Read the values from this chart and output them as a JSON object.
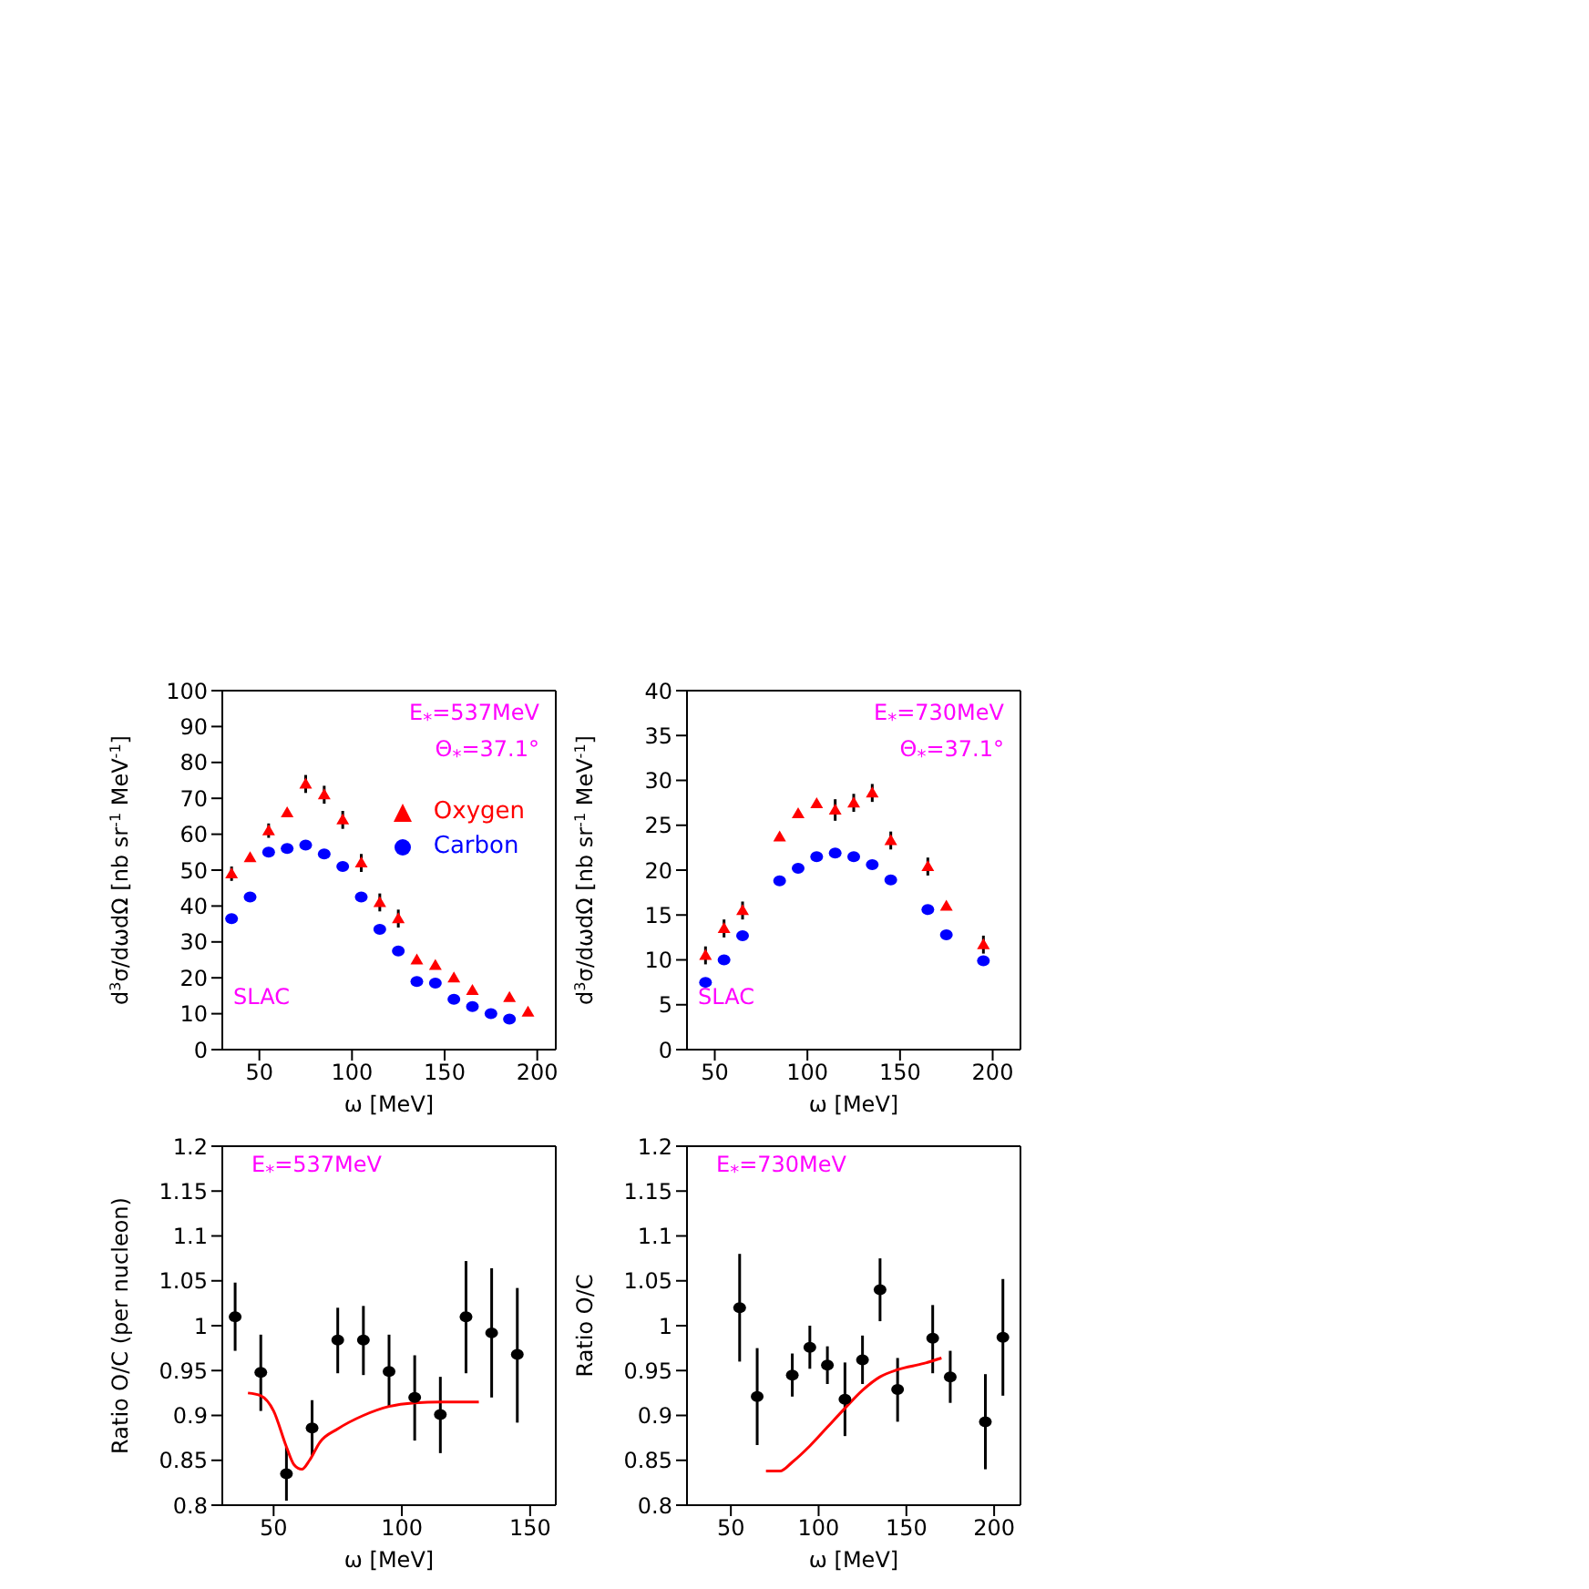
{
  "chart_data": [
    {
      "type": "scatter",
      "xlabel": "ω [MeV]",
      "ylabel": "d$^{3}$σ/dωdΩ [nb sr$^{-1}$ MeV$^{-1}$]",
      "xlim": [
        30,
        210
      ],
      "xticks": [
        50,
        100,
        150,
        200
      ],
      "ylim": [
        0,
        100
      ],
      "yticks": [
        0,
        10,
        20,
        30,
        40,
        50,
        60,
        70,
        80,
        90,
        100
      ],
      "grid": false,
      "legend": "top right",
      "annotations": [
        "E$_{*}$=537MeV",
        "Θ$_{*}$=37.1°",
        "SLAC"
      ],
      "series": [
        {
          "name": "Oxygen",
          "color": "#ff0000",
          "marker": "triangle",
          "x": [
            35,
            45,
            55,
            65,
            75,
            85,
            95,
            105,
            115,
            125,
            135,
            145,
            155,
            165,
            185,
            195
          ],
          "values": [
            49,
            53.5,
            61,
            66,
            74,
            71,
            64,
            52,
            41,
            36.5,
            25,
            23.5,
            20,
            16.5,
            14.5,
            10.5
          ],
          "errors": [
            2,
            null,
            2,
            null,
            2.5,
            2.5,
            2.5,
            2.5,
            2.5,
            2.5,
            null,
            null,
            null,
            null,
            null,
            null
          ]
        },
        {
          "name": "Carbon",
          "color": "#0000ff",
          "marker": "circle",
          "x": [
            35,
            45,
            55,
            65,
            75,
            85,
            95,
            105,
            115,
            125,
            135,
            145,
            155,
            165,
            175,
            185
          ],
          "values": [
            36.5,
            42.5,
            55,
            56,
            57,
            54.5,
            51,
            42.5,
            33.5,
            27.5,
            19,
            18.5,
            14,
            12,
            10,
            8.5
          ]
        }
      ]
    },
    {
      "type": "scatter",
      "xlabel": "ω [MeV]",
      "ylabel": "d$^{3}$σ/dωdΩ [nb sr$^{-1}$ MeV$^{-1}$]",
      "xlim": [
        35,
        215
      ],
      "xticks": [
        50,
        100,
        150,
        200
      ],
      "ylim": [
        0,
        40
      ],
      "yticks": [
        0,
        5,
        10,
        15,
        20,
        25,
        30,
        35,
        40
      ],
      "grid": false,
      "annotations": [
        "E$_{*}$=730MeV",
        "Θ$_{*}$=37.1°",
        "SLAC"
      ],
      "series": [
        {
          "color": "#ff0000",
          "marker": "triangle",
          "x": [
            45,
            55,
            65,
            85,
            95,
            105,
            115,
            125,
            135,
            145,
            165,
            175,
            195
          ],
          "values": [
            10.5,
            13.5,
            15.5,
            23.7,
            26.3,
            27.4,
            26.7,
            27.5,
            28.6,
            23.3,
            20.4,
            16,
            11.7
          ],
          "errors": [
            1,
            1,
            1,
            null,
            null,
            null,
            1.2,
            1,
            1,
            1,
            1,
            null,
            1
          ]
        },
        {
          "color": "#0000ff",
          "marker": "circle",
          "x": [
            45,
            55,
            65,
            85,
            95,
            105,
            115,
            125,
            135,
            145,
            165,
            175,
            195
          ],
          "values": [
            7.5,
            10,
            12.7,
            18.8,
            20.2,
            21.5,
            21.9,
            21.5,
            20.6,
            18.9,
            15.6,
            12.8,
            9.9
          ]
        }
      ]
    },
    {
      "type": "scatter",
      "xlabel": "ω [MeV]",
      "ylabel": "Ratio O/C (per nucleon)",
      "xlim": [
        30,
        160
      ],
      "xticks": [
        50,
        100,
        150
      ],
      "ylim": [
        0.8,
        1.2
      ],
      "yticks": [
        0.8,
        0.85,
        0.9,
        0.95,
        1,
        1.05,
        1.1,
        1.15,
        1.2
      ],
      "grid": false,
      "annotations": [
        "E$_{*}$=537MeV"
      ],
      "series": [
        {
          "color": "#000000",
          "marker": "circle",
          "x": [
            35,
            45,
            55,
            65,
            75,
            85,
            95,
            105,
            115,
            125,
            135,
            145
          ],
          "values": [
            1.01,
            0.948,
            0.835,
            0.886,
            0.984,
            0.984,
            0.949,
            0.92,
            0.901,
            1.01,
            0.992,
            0.968
          ],
          "errors": [
            [
              0.972,
              1.048
            ],
            [
              0.905,
              0.99
            ],
            [
              0.805,
              0.865
            ],
            [
              0.855,
              0.917
            ],
            [
              0.947,
              1.02
            ],
            [
              0.945,
              1.022
            ],
            [
              0.91,
              0.99
            ],
            [
              0.872,
              0.967
            ],
            [
              0.858,
              0.943
            ],
            [
              0.947,
              1.072
            ],
            [
              0.92,
              1.064
            ],
            [
              0.892,
              1.042
            ]
          ]
        },
        {
          "type": "line",
          "color": "#ff0000",
          "marker": "none",
          "line_style": "solid",
          "x": [
            40,
            45,
            50,
            55,
            58,
            61,
            64,
            68,
            75,
            85,
            95,
            105,
            115,
            130
          ],
          "values": [
            0.925,
            0.922,
            0.905,
            0.865,
            0.845,
            0.84,
            0.85,
            0.87,
            0.885,
            0.9,
            0.91,
            0.914,
            0.915,
            0.915
          ]
        }
      ]
    },
    {
      "type": "scatter",
      "xlabel": "ω [MeV]",
      "ylabel": "Ratio O/C",
      "xlim": [
        25,
        215
      ],
      "xticks": [
        50,
        100,
        150,
        200
      ],
      "ylim": [
        0.8,
        1.2
      ],
      "yticks": [
        0.8,
        0.85,
        0.9,
        0.95,
        1,
        1.05,
        1.1,
        1.15,
        1.2
      ],
      "grid": false,
      "annotations": [
        "E$_{*}$=730MeV"
      ],
      "series": [
        {
          "color": "#000000",
          "marker": "circle",
          "x": [
            55,
            65,
            85,
            95,
            105,
            115,
            125,
            135,
            145,
            165,
            175,
            195,
            205
          ],
          "values": [
            1.02,
            0.921,
            0.945,
            0.976,
            0.956,
            0.918,
            0.962,
            1.04,
            0.929,
            0.986,
            0.943,
            0.893,
            0.987
          ],
          "errors": [
            [
              0.96,
              1.08
            ],
            [
              0.867,
              0.975
            ],
            [
              0.921,
              0.969
            ],
            [
              0.952,
              1.0
            ],
            [
              0.935,
              0.977
            ],
            [
              0.877,
              0.959
            ],
            [
              0.935,
              0.989
            ],
            [
              1.005,
              1.075
            ],
            [
              0.893,
              0.964
            ],
            [
              0.947,
              1.023
            ],
            [
              0.914,
              0.972
            ],
            [
              0.84,
              0.946
            ],
            [
              0.922,
              1.052
            ]
          ]
        },
        {
          "type": "line",
          "color": "#ff0000",
          "marker": "none",
          "line_style": "solid",
          "x": [
            70,
            78,
            85,
            95,
            105,
            115,
            125,
            135,
            145,
            160,
            170
          ],
          "values": [
            0.838,
            0.838,
            0.848,
            0.866,
            0.887,
            0.908,
            0.928,
            0.943,
            0.951,
            0.958,
            0.964
          ]
        }
      ]
    }
  ]
}
